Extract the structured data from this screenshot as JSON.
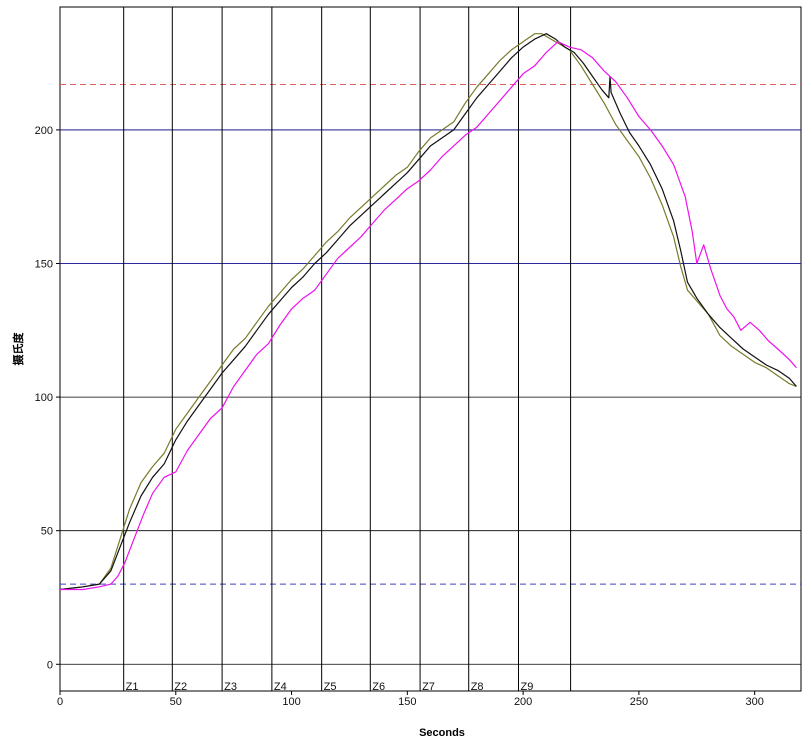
{
  "chart_data": {
    "type": "line",
    "title": "",
    "xlabel": "Seconds",
    "ylabel": "摄氏度",
    "xlim": [
      0,
      320
    ],
    "ylim": [
      -10,
      246
    ],
    "x_ticks": [
      0,
      50,
      100,
      150,
      200,
      250,
      300
    ],
    "y_ticks": [
      0,
      50,
      100,
      150,
      200
    ],
    "grid": true,
    "reference_lines": [
      {
        "y": 217,
        "color": "#e06060",
        "style": "dashed"
      },
      {
        "y": 200,
        "color": "#2a2a9a",
        "style": "solid"
      },
      {
        "y": 150,
        "color": "#2a2a9a",
        "style": "solid"
      },
      {
        "y": 30,
        "color": "#4040c0",
        "style": "dashed"
      }
    ],
    "zones": [
      {
        "label": "Z1",
        "x": 27.5
      },
      {
        "label": "Z2",
        "x": 48.5
      },
      {
        "label": "Z3",
        "x": 70
      },
      {
        "label": "Z4",
        "x": 91.5
      },
      {
        "label": "Z5",
        "x": 113
      },
      {
        "label": "Z6",
        "x": 134
      },
      {
        "label": "Z7",
        "x": 155.5
      },
      {
        "label": "Z8",
        "x": 176.5
      },
      {
        "label": "Z9",
        "x": 198
      },
      {
        "label": "",
        "x": 220.5
      }
    ],
    "series": [
      {
        "color": "#7a7a2a",
        "x": [
          0,
          10,
          17,
          22,
          26,
          30,
          35,
          40,
          45,
          50,
          55,
          60,
          65,
          70,
          75,
          80,
          85,
          90,
          95,
          100,
          105,
          110,
          115,
          120,
          125,
          130,
          135,
          140,
          145,
          150,
          155,
          160,
          165,
          170,
          175,
          180,
          185,
          190,
          195,
          200,
          205,
          208,
          212,
          216,
          220,
          225,
          230,
          235,
          240,
          245,
          250,
          255,
          260,
          265,
          268,
          271,
          275,
          280,
          285,
          290,
          295,
          300,
          305,
          310,
          315,
          318
        ],
        "values": [
          28,
          29,
          30,
          36,
          47,
          58,
          68,
          74,
          79,
          88,
          94,
          100,
          106,
          112,
          118,
          122,
          128,
          134,
          139,
          144,
          148,
          153,
          158,
          162,
          167,
          171,
          175,
          179,
          183,
          186,
          192,
          197,
          200,
          203,
          210,
          216,
          221,
          226,
          230,
          233,
          236,
          236,
          234,
          232,
          230,
          224,
          217,
          210,
          202,
          196,
          190,
          182,
          172,
          160,
          149,
          140,
          136,
          131,
          123,
          119,
          116,
          113,
          111,
          108,
          105,
          104
        ]
      },
      {
        "color": "#111111",
        "x": [
          0,
          10,
          17,
          22,
          26,
          30,
          35,
          40,
          45,
          50,
          55,
          60,
          65,
          70,
          75,
          80,
          85,
          90,
          95,
          100,
          105,
          110,
          115,
          120,
          125,
          130,
          135,
          140,
          145,
          150,
          155,
          160,
          165,
          170,
          175,
          180,
          185,
          190,
          195,
          200,
          205,
          210,
          214,
          218,
          222,
          226,
          230,
          234,
          237,
          237.5,
          238,
          242,
          246,
          250,
          255,
          260,
          265,
          268,
          271,
          275,
          280,
          285,
          290,
          295,
          300,
          305,
          310,
          315,
          318
        ],
        "values": [
          28,
          29,
          30,
          35,
          44,
          53,
          63,
          70,
          75,
          84,
          91,
          97,
          103,
          109,
          114,
          119,
          125,
          131,
          136,
          141,
          145,
          150,
          154,
          159,
          164,
          168,
          172,
          176,
          180,
          184,
          189,
          194,
          197,
          200,
          206,
          212,
          217,
          222,
          227,
          231,
          234,
          236,
          234,
          231,
          229,
          225,
          220,
          215,
          212,
          220,
          214,
          206,
          199,
          194,
          187,
          178,
          166,
          155,
          143,
          137,
          131,
          126,
          122,
          118,
          115,
          112,
          110,
          107,
          104
        ]
      },
      {
        "color": "#ee11ee",
        "x": [
          0,
          10,
          17,
          22,
          25,
          28,
          32,
          36,
          40,
          45,
          50,
          55,
          60,
          65,
          70,
          75,
          80,
          85,
          90,
          95,
          100,
          105,
          110,
          115,
          120,
          125,
          130,
          135,
          140,
          145,
          150,
          155,
          160,
          165,
          170,
          175,
          180,
          185,
          190,
          195,
          200,
          205,
          210,
          215,
          220,
          225,
          230,
          235,
          240,
          245,
          250,
          255,
          260,
          265,
          270,
          273,
          275,
          278,
          281,
          285,
          288,
          291,
          294,
          298,
          302,
          306,
          310,
          315,
          318
        ],
        "values": [
          28,
          28,
          29,
          30,
          33,
          38,
          47,
          56,
          64,
          70,
          72,
          80,
          86,
          92,
          96,
          104,
          110,
          116,
          120,
          127,
          133,
          137,
          140,
          146,
          152,
          156,
          160,
          165,
          170,
          174,
          178,
          181,
          185,
          190,
          194,
          198,
          201,
          206,
          211,
          216,
          221,
          224,
          229,
          233,
          231,
          230,
          227,
          222,
          218,
          212,
          205,
          200,
          194,
          187,
          175,
          162,
          150,
          157,
          148,
          138,
          133,
          130,
          125,
          128,
          125,
          121,
          118,
          114,
          111
        ]
      }
    ]
  }
}
